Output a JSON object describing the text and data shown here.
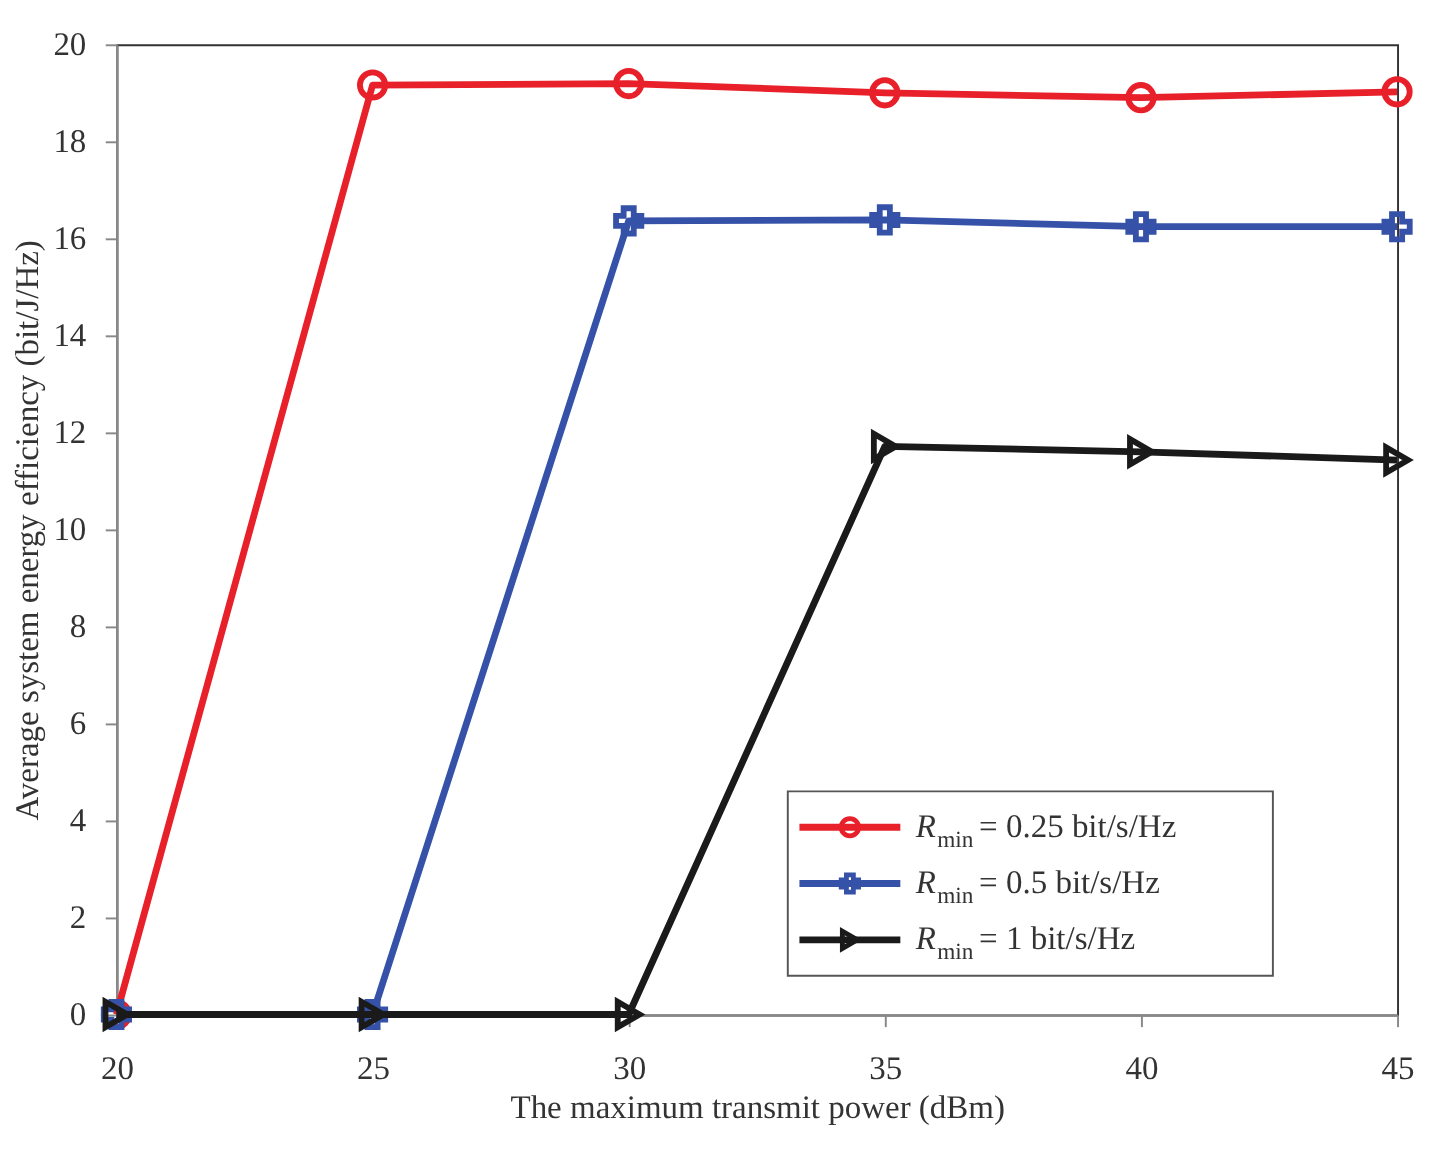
{
  "chart_data": {
    "type": "line",
    "xlabel": "The maximum transmit power (dBm)",
    "ylabel": "Average system energy efficiency (bit/J/Hz)",
    "x": [
      20,
      25,
      30,
      35,
      40,
      45
    ],
    "series": [
      {
        "name": "R$_{min}$ = 0.25 bit/s/Hz",
        "color": "#e8202a",
        "marker": "circle",
        "values": [
          0,
          19.16,
          19.19,
          19.0,
          18.9,
          19.02
        ]
      },
      {
        "name": "R$_{min}$ = 0.5 bit/s/Hz",
        "color": "#3552a8",
        "marker": "cross",
        "values": [
          0,
          0,
          16.36,
          16.38,
          16.24,
          16.24
        ]
      },
      {
        "name": "R$_{min}$ = 1 bit/s/Hz",
        "color": "#1a1a1a",
        "marker": "triangle",
        "values": [
          0,
          0,
          0,
          11.71,
          11.6,
          11.43
        ]
      }
    ],
    "xlim": [
      20,
      45
    ],
    "xticks": [
      20,
      25,
      30,
      35,
      40,
      45
    ],
    "ylim": [
      0,
      20
    ],
    "yticks": [
      0,
      2,
      4,
      6,
      8,
      10,
      12,
      14,
      16,
      18,
      20
    ],
    "grid": false,
    "legend": "bottom right",
    "line_style": "solid"
  }
}
